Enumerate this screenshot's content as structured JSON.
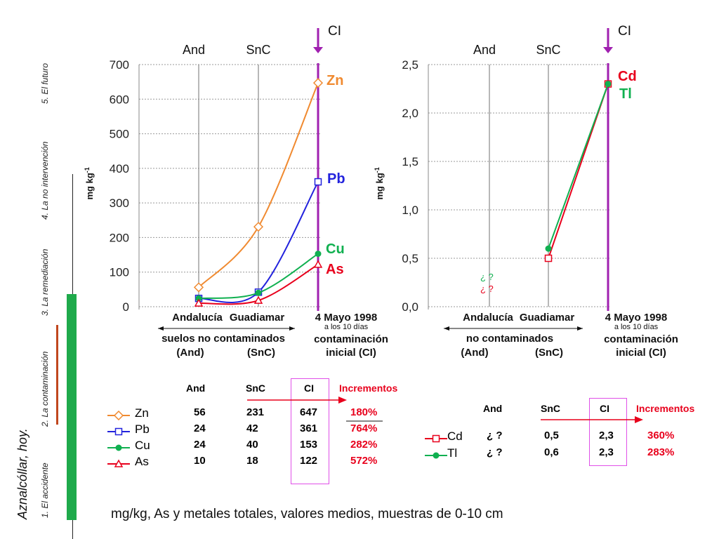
{
  "page": {
    "side_title": "Aznalcóllar, hoy.",
    "sections": [
      "1. El accidente",
      "2. La contaminación",
      "3. La remediación",
      "4. La no intervención",
      "5. El futuro"
    ],
    "footer": "mg/kg,  As y metales totales, valores medios, muestras de 0-10 cm",
    "colors": {
      "green_bar": "#1faa4b",
      "orange_line": "#c0461e",
      "cl_line": "#a020b0"
    }
  },
  "chart_data": [
    {
      "type": "line",
      "ylabel": "mg kg-1",
      "ylim": [
        0,
        700
      ],
      "yticks": [
        "0",
        "100",
        "200",
        "300",
        "400",
        "500",
        "600",
        "700"
      ],
      "categories": [
        "Andalucía",
        "Guadiamar",
        "4 Mayo 1998"
      ],
      "category_sub": [
        "",
        "",
        "a los 10 días"
      ],
      "top_labels": [
        "And",
        "SnC",
        "CI"
      ],
      "bottom_labels": {
        "arrow_label": "suelos  no contaminados",
        "and_abbr": "(And)",
        "snc_abbr": "(SnC)",
        "cl_label_1": "contaminación",
        "cl_label_2": "inicial  (CI)"
      },
      "grid": true,
      "series": [
        {
          "name": "Zn",
          "values": [
            56,
            231,
            647
          ],
          "color": "#f08a30",
          "marker": "diamond"
        },
        {
          "name": "Pb",
          "values": [
            24,
            42,
            361
          ],
          "color": "#2222dd",
          "marker": "square"
        },
        {
          "name": "Cu",
          "values": [
            24,
            40,
            153
          ],
          "color": "#10b050",
          "marker": "circle"
        },
        {
          "name": "As",
          "values": [
            10,
            18,
            122
          ],
          "color": "#e8001c",
          "marker": "triangle"
        }
      ]
    },
    {
      "type": "line",
      "ylabel": "mg kg-1",
      "ylim": [
        0,
        2.5
      ],
      "yticks": [
        "0,0",
        "0,5",
        "1,0",
        "1,5",
        "2,0",
        "2,5"
      ],
      "categories": [
        "Andalucía",
        "Guadiamar",
        "4 Mayo 1998"
      ],
      "category_sub": [
        "",
        "",
        "a los 10 días"
      ],
      "top_labels": [
        "And",
        "SnC",
        "CI"
      ],
      "bottom_labels": {
        "arrow_label": "no contaminados",
        "and_abbr": "(And)",
        "snc_abbr": "(SnC)",
        "cl_label_1": "contaminación",
        "cl_label_2": "inicial  (CI)"
      },
      "unknown_marks": [
        "¿ ?",
        "¿ ?"
      ],
      "grid": true,
      "series": [
        {
          "name": "Cd",
          "values": [
            null,
            0.5,
            2.3
          ],
          "color": "#e8001c",
          "marker": "square"
        },
        {
          "name": "Tl",
          "values": [
            null,
            0.6,
            2.3
          ],
          "color": "#10b050",
          "marker": "circle"
        }
      ]
    }
  ],
  "table1": {
    "headers": [
      "And",
      "SnC",
      "CI",
      "Incrementos"
    ],
    "rows": [
      {
        "name": "Zn",
        "and": "56",
        "snc": "231",
        "cl": "647",
        "inc": "180%"
      },
      {
        "name": "Pb",
        "and": "24",
        "snc": "42",
        "cl": "361",
        "inc": "764%"
      },
      {
        "name": "Cu",
        "and": "24",
        "snc": "40",
        "cl": "153",
        "inc": "282%"
      },
      {
        "name": "As",
        "and": "10",
        "snc": "18",
        "cl": "122",
        "inc": "572%"
      }
    ]
  },
  "table2": {
    "headers": [
      "And",
      "SnC",
      "CI",
      "Incrementos"
    ],
    "rows": [
      {
        "name": "Cd",
        "and": "¿ ?",
        "snc": "0,5",
        "cl": "2,3",
        "inc": "360%"
      },
      {
        "name": "Tl",
        "and": "¿ ?",
        "snc": "0,6",
        "cl": "2,3",
        "inc": "283%"
      }
    ]
  }
}
